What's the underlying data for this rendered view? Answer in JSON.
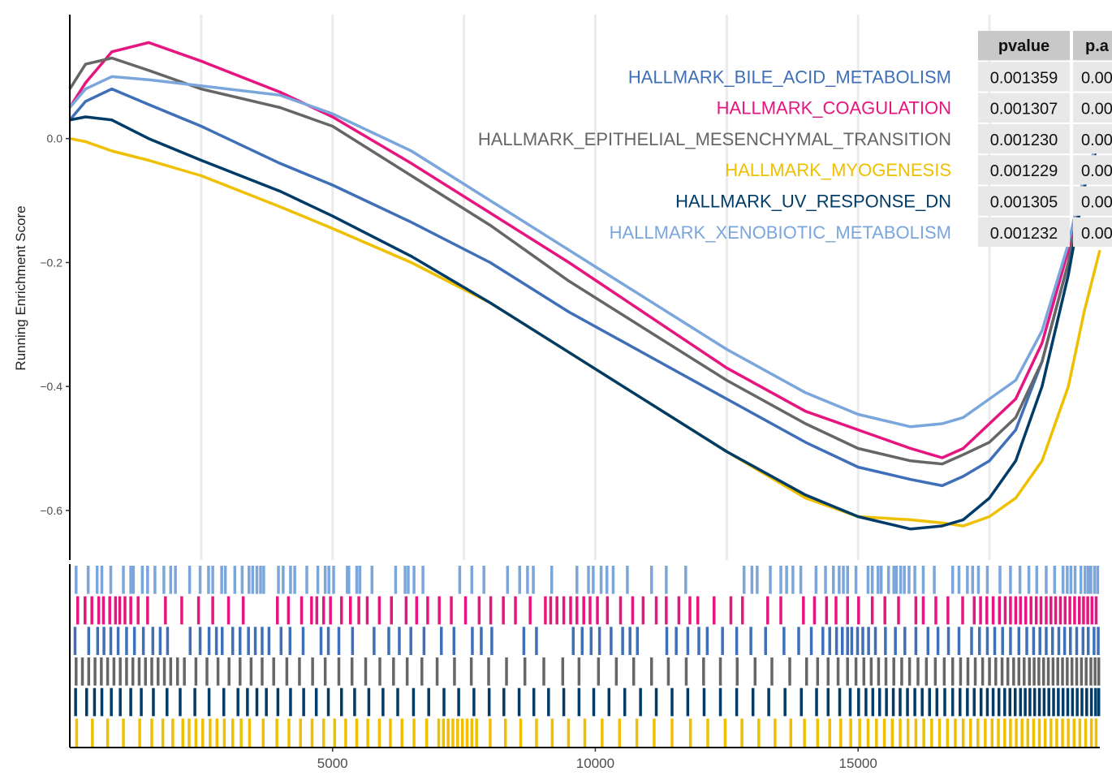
{
  "chart_data": {
    "type": "line",
    "title": "",
    "ylabel": "Running Enrichment Score",
    "xlabel": "",
    "xlim": [
      0,
      19600
    ],
    "ylim": [
      -0.68,
      0.2
    ],
    "x_ticks": [
      5000,
      10000,
      15000
    ],
    "x_tick_labels": [
      "5000",
      "10000",
      "15000"
    ],
    "y_ticks": [
      0.0,
      -0.2,
      -0.4,
      -0.6
    ],
    "y_tick_labels": [
      "0.0",
      "−0.2",
      "−0.4",
      "−0.6"
    ],
    "grid": "vertical-only",
    "legend_position": "top-right",
    "table": {
      "columns": [
        "pvalue",
        "p.a"
      ],
      "rows": [
        {
          "name": "HALLMARK_BILE_ACID_METABOLISM",
          "pvalue": "0.001359",
          "padj": "0.00"
        },
        {
          "name": "HALLMARK_COAGULATION",
          "pvalue": "0.001307",
          "padj": "0.00"
        },
        {
          "name": "HALLMARK_EPITHELIAL_MESENCHYMAL_TRANSITION",
          "pvalue": "0.001230",
          "padj": "0.00"
        },
        {
          "name": "HALLMARK_MYOGENESIS",
          "pvalue": "0.001229",
          "padj": "0.00"
        },
        {
          "name": "HALLMARK_UV_RESPONSE_DN",
          "pvalue": "0.001305",
          "padj": "0.00"
        },
        {
          "name": "HALLMARK_XENOBIOTIC_METABOLISM",
          "pvalue": "0.001232",
          "padj": "0.00"
        }
      ]
    },
    "series": [
      {
        "name": "HALLMARK_BILE_ACID_METABOLISM",
        "color": "#3E6FB8",
        "x": [
          0,
          300,
          800,
          1500,
          2500,
          4000,
          5000,
          6500,
          8000,
          9500,
          11000,
          12500,
          14000,
          15000,
          16000,
          16600,
          17000,
          17500,
          18000,
          18500,
          19000,
          19300,
          19600
        ],
        "y": [
          0.03,
          0.06,
          0.08,
          0.055,
          0.02,
          -0.04,
          -0.075,
          -0.135,
          -0.2,
          -0.28,
          -0.35,
          -0.42,
          -0.49,
          -0.53,
          -0.55,
          -0.56,
          -0.545,
          -0.52,
          -0.47,
          -0.36,
          -0.2,
          -0.08,
          0.0
        ]
      },
      {
        "name": "HALLMARK_COAGULATION",
        "color": "#E7157F",
        "x": [
          0,
          300,
          800,
          1500,
          2500,
          4000,
          5000,
          6500,
          8000,
          9500,
          11000,
          12500,
          14000,
          15000,
          16000,
          16600,
          17000,
          17500,
          18000,
          18500,
          19000,
          19300,
          19600
        ],
        "y": [
          0.05,
          0.09,
          0.14,
          0.155,
          0.125,
          0.075,
          0.035,
          -0.04,
          -0.12,
          -0.2,
          -0.285,
          -0.37,
          -0.44,
          -0.47,
          -0.5,
          -0.515,
          -0.5,
          -0.46,
          -0.42,
          -0.33,
          -0.18,
          -0.06,
          0.0
        ]
      },
      {
        "name": "HALLMARK_EPITHELIAL_MESENCHYMAL_TRANSITION",
        "color": "#666666",
        "x": [
          0,
          300,
          800,
          1500,
          2500,
          4000,
          5000,
          6500,
          8000,
          9500,
          11000,
          12500,
          14000,
          15000,
          16000,
          16600,
          17000,
          17500,
          18000,
          18500,
          19000,
          19300,
          19600
        ],
        "y": [
          0.08,
          0.12,
          0.13,
          0.11,
          0.08,
          0.05,
          0.02,
          -0.06,
          -0.14,
          -0.23,
          -0.31,
          -0.39,
          -0.46,
          -0.5,
          -0.52,
          -0.525,
          -0.51,
          -0.49,
          -0.45,
          -0.36,
          -0.2,
          -0.07,
          0.0
        ]
      },
      {
        "name": "HALLMARK_MYOGENESIS",
        "color": "#EFC000",
        "x": [
          0,
          300,
          800,
          1500,
          2500,
          4000,
          5000,
          6500,
          8000,
          9500,
          11000,
          12500,
          14000,
          15000,
          16000,
          16600,
          17000,
          17500,
          18000,
          18500,
          19000,
          19300,
          19600
        ],
        "y": [
          0.0,
          -0.005,
          -0.02,
          -0.035,
          -0.06,
          -0.11,
          -0.145,
          -0.2,
          -0.265,
          -0.345,
          -0.425,
          -0.505,
          -0.58,
          -0.61,
          -0.615,
          -0.62,
          -0.625,
          -0.61,
          -0.58,
          -0.52,
          -0.4,
          -0.28,
          -0.18
        ]
      },
      {
        "name": "HALLMARK_UV_RESPONSE_DN",
        "color": "#003C67",
        "x": [
          0,
          300,
          800,
          1500,
          2500,
          4000,
          5000,
          6500,
          8000,
          9500,
          11000,
          12500,
          14000,
          15000,
          16000,
          16600,
          17000,
          17500,
          18000,
          18500,
          19000,
          19300,
          19600
        ],
        "y": [
          0.03,
          0.035,
          0.03,
          0.0,
          -0.035,
          -0.085,
          -0.125,
          -0.19,
          -0.265,
          -0.345,
          -0.425,
          -0.505,
          -0.575,
          -0.61,
          -0.63,
          -0.625,
          -0.615,
          -0.58,
          -0.52,
          -0.4,
          -0.22,
          -0.08,
          0.0
        ]
      },
      {
        "name": "HALLMARK_XENOBIOTIC_METABOLISM",
        "color": "#7AA6DC",
        "x": [
          0,
          300,
          800,
          1500,
          2500,
          4000,
          5000,
          6500,
          8000,
          9500,
          11000,
          12500,
          14000,
          15000,
          16000,
          16600,
          17000,
          17500,
          18000,
          18500,
          19000,
          19300,
          19600
        ],
        "y": [
          0.05,
          0.08,
          0.1,
          0.095,
          0.085,
          0.07,
          0.04,
          -0.02,
          -0.1,
          -0.18,
          -0.26,
          -0.34,
          -0.41,
          -0.445,
          -0.465,
          -0.46,
          -0.45,
          -0.42,
          -0.39,
          -0.31,
          -0.17,
          -0.06,
          0.0
        ]
      }
    ],
    "rug": [
      {
        "series": "HALLMARK_XENOBIOTIC_METABOLISM",
        "color": "#7AA6DC",
        "hits": [
          120,
          350,
          520,
          610,
          780,
          1020,
          1160,
          1210,
          1380,
          1480,
          1620,
          1790,
          1920,
          2010,
          2280,
          2480,
          2640,
          2720,
          2890,
          2960,
          3140,
          3280,
          3410,
          3480,
          3560,
          3630,
          3690,
          3970,
          4060,
          4200,
          4280,
          4510,
          4720,
          4860,
          4930,
          5020,
          5280,
          5310,
          5460,
          5520,
          5750,
          6200,
          6380,
          6440,
          6550,
          6720,
          7420,
          7650,
          7880,
          8330,
          8560,
          8710,
          8820,
          9170,
          9650,
          9870,
          9960,
          10110,
          10220,
          10340,
          10610,
          11070,
          11350,
          11720,
          12830,
          12980,
          13080,
          13330,
          13530,
          13640,
          13760,
          13910,
          14200,
          14380,
          14530,
          14640,
          14720,
          14800,
          14960,
          15190,
          15270,
          15380,
          15440,
          15580,
          15680,
          15730,
          15810,
          15880,
          15970,
          16080,
          16240,
          16450,
          16800,
          16920,
          17080,
          17180,
          17290,
          17460,
          17700,
          17900,
          18080,
          18250,
          18400,
          18580,
          18740,
          18900,
          18980,
          19050,
          19130,
          19240,
          19320,
          19380,
          19430,
          19500,
          19560
        ]
      },
      {
        "series": "HALLMARK_COAGULATION",
        "color": "#E7157F",
        "hits": [
          150,
          290,
          420,
          550,
          640,
          760,
          870,
          950,
          1050,
          1160,
          1300,
          1480,
          1820,
          2130,
          2450,
          2720,
          3020,
          3300,
          3950,
          4160,
          4410,
          4600,
          4700,
          4830,
          4960,
          5170,
          5340,
          5500,
          5660,
          5890,
          6120,
          6400,
          6600,
          6810,
          7030,
          7260,
          7530,
          7790,
          8010,
          8250,
          8480,
          8760,
          9050,
          9150,
          9270,
          9400,
          9530,
          9650,
          9780,
          9900,
          10040,
          10230,
          10480,
          10710,
          10910,
          11160,
          11350,
          11590,
          11800,
          11950,
          12260,
          12580,
          12800,
          13280,
          13530,
          13960,
          14170,
          14400,
          14580,
          14800,
          15010,
          15270,
          15510,
          15770,
          16100,
          16240,
          16480,
          16710,
          16990,
          17210,
          17330,
          17450,
          17570,
          17690,
          17800,
          17900,
          18000,
          18090,
          18190,
          18290,
          18390,
          18480,
          18580,
          18670,
          18760,
          18850,
          18940,
          19030,
          19120,
          19210,
          19290,
          19370,
          19450,
          19530
        ]
      },
      {
        "series": "HALLMARK_BILE_ACID_METABOLISM",
        "color": "#3E6FB8",
        "hits": [
          100,
          360,
          530,
          650,
          780,
          920,
          1080,
          1230,
          1400,
          1580,
          1720,
          1860,
          2290,
          2480,
          2650,
          2790,
          2900,
          3100,
          3240,
          3400,
          3530,
          3660,
          3790,
          4020,
          4190,
          4440,
          4780,
          4920,
          5120,
          5380,
          5790,
          6070,
          6270,
          6490,
          6740,
          7070,
          7310,
          7660,
          7830,
          8030,
          8640,
          8880,
          9580,
          9750,
          9920,
          10080,
          10300,
          10520,
          10660,
          10800,
          11360,
          11540,
          11760,
          11970,
          12130,
          12420,
          12690,
          12960,
          13240,
          13590,
          13870,
          14110,
          14330,
          14460,
          14590,
          14700,
          14800,
          14880,
          14990,
          15090,
          15200,
          15330,
          15520,
          15710,
          15890,
          16100,
          16330,
          16520,
          16720,
          16920,
          17160,
          17310,
          17460,
          17600,
          17750,
          17900,
          18060,
          18210,
          18340,
          18460,
          18580,
          18700,
          18820,
          18930,
          19040,
          19160,
          19280,
          19380,
          19490,
          19570
        ]
      },
      {
        "series": "HALLMARK_EPITHELIAL_MESENCHYMAL_TRANSITION",
        "color": "#666666",
        "hits": [
          120,
          240,
          360,
          480,
          600,
          720,
          840,
          960,
          1080,
          1200,
          1320,
          1440,
          1560,
          1680,
          1800,
          1920,
          2050,
          2180,
          2400,
          2610,
          2820,
          3030,
          3240,
          3450,
          3660,
          3880,
          4130,
          4370,
          4620,
          4860,
          5120,
          5370,
          5630,
          5900,
          6160,
          6420,
          6700,
          6990,
          7320,
          7640,
          7970,
          8310,
          8660,
          9020,
          9380,
          9690,
          10060,
          10400,
          10730,
          11070,
          11390,
          11730,
          12060,
          12380,
          12700,
          13040,
          13360,
          13700,
          14020,
          14230,
          14430,
          14620,
          14800,
          14960,
          15110,
          15250,
          15390,
          15530,
          15680,
          15830,
          15980,
          16140,
          16300,
          16470,
          16640,
          16800,
          16950,
          17090,
          17230,
          17370,
          17500,
          17620,
          17740,
          17850,
          17960,
          18060,
          18160,
          18260,
          18350,
          18440,
          18530,
          18620,
          18710,
          18800,
          18890,
          18980,
          19070,
          19160,
          19250,
          19340,
          19430,
          19510,
          19580
        ]
      },
      {
        "series": "HALLMARK_UV_RESPONSE_DN",
        "color": "#003C67",
        "hits": [
          110,
          320,
          470,
          610,
          790,
          960,
          1160,
          1360,
          1590,
          1850,
          2100,
          2380,
          2650,
          2930,
          3200,
          3380,
          3560,
          3740,
          3960,
          4200,
          4450,
          4690,
          4920,
          5170,
          5420,
          5690,
          5960,
          6240,
          6540,
          6830,
          7120,
          7400,
          7690,
          7980,
          8260,
          8550,
          8830,
          9110,
          9400,
          9690,
          9970,
          10260,
          10560,
          10860,
          11160,
          11460,
          11760,
          12070,
          12380,
          12690,
          13000,
          13300,
          13610,
          13920,
          14210,
          14430,
          14650,
          14850,
          15010,
          15150,
          15280,
          15410,
          15540,
          15670,
          15800,
          15940,
          16080,
          16220,
          16360,
          16500,
          16650,
          16800,
          16940,
          17080,
          17210,
          17340,
          17460,
          17570,
          17680,
          17790,
          17890,
          17990,
          18090,
          18180,
          18270,
          18360,
          18450,
          18540,
          18630,
          18720,
          18810,
          18900,
          18990,
          19080,
          19170,
          19260,
          19350,
          19440,
          19520,
          19580
        ]
      },
      {
        "series": "HALLMARK_MYOGENESIS",
        "color": "#EFC000",
        "hits": [
          130,
          430,
          720,
          1020,
          1330,
          1560,
          1770,
          1960,
          2150,
          2270,
          2400,
          2530,
          2670,
          2800,
          2940,
          3100,
          3260,
          3420,
          3680,
          3940,
          4170,
          4390,
          4610,
          4830,
          5040,
          5250,
          5460,
          5670,
          5890,
          6100,
          6320,
          6550,
          6790,
          7020,
          7110,
          7200,
          7290,
          7380,
          7470,
          7560,
          7650,
          7740,
          8000,
          8290,
          8580,
          8880,
          9180,
          9490,
          9800,
          10130,
          10460,
          10790,
          11120,
          11460,
          11810,
          12140,
          12470,
          12790,
          13110,
          13420,
          13720,
          13980,
          14230,
          14460,
          14670,
          14860,
          15030,
          15190,
          15350,
          15500,
          15650,
          15800,
          15950,
          16100,
          16250,
          16400,
          16550,
          16700,
          16850,
          17000,
          17140,
          17280,
          17420,
          17550,
          17670,
          17790,
          17900,
          18010,
          18120,
          18230,
          18340,
          18450,
          18560,
          18670,
          18780,
          18890,
          19000,
          19110,
          19220,
          19330,
          19440,
          19530
        ]
      }
    ]
  }
}
